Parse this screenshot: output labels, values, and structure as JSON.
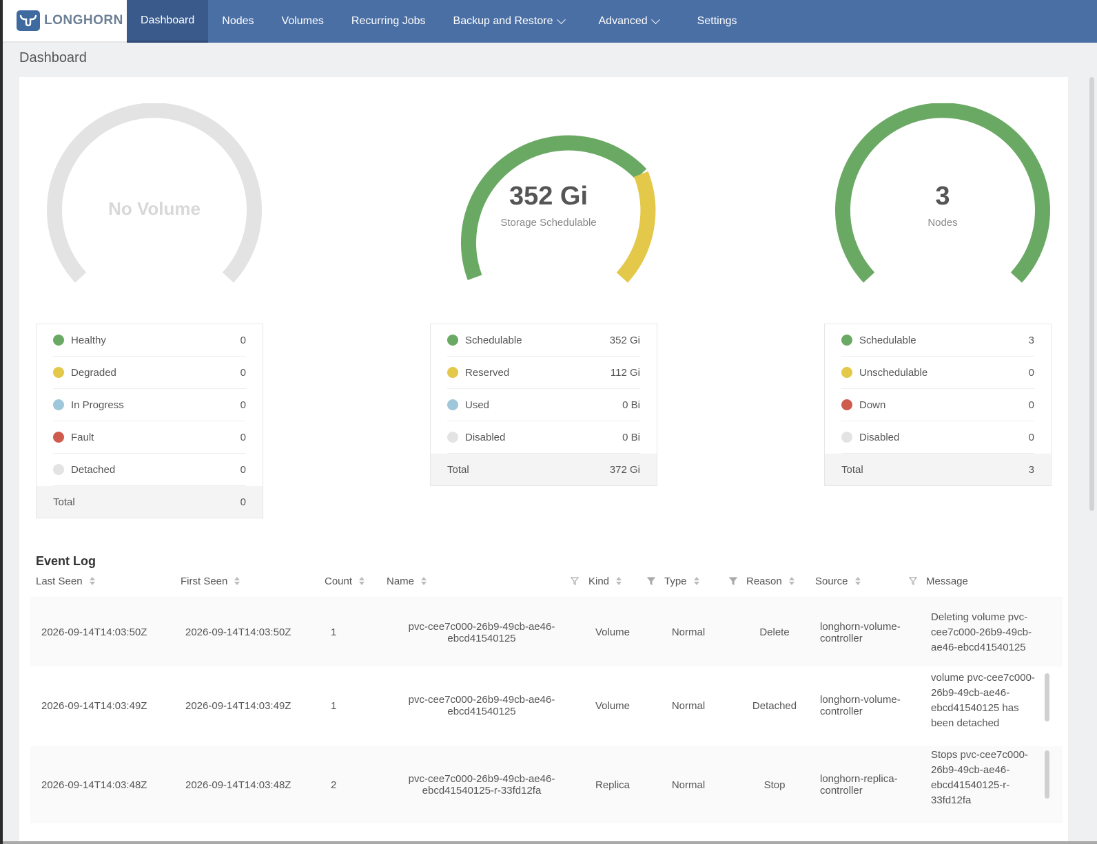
{
  "nav": {
    "logo_text": "LONGHORN",
    "items": [
      {
        "label": "Dashboard",
        "active": true
      },
      {
        "label": "Nodes"
      },
      {
        "label": "Volumes"
      },
      {
        "label": "Recurring Jobs"
      },
      {
        "label": "Backup and Restore",
        "dropdown": true
      },
      {
        "label": "Advanced",
        "dropdown": true
      },
      {
        "label": "Settings"
      }
    ]
  },
  "page_title": "Dashboard",
  "colors": {
    "nav_bg": "#4a6fa5",
    "green": "#6aa964",
    "yellow": "#e3c84a",
    "blue": "#9ec7d9",
    "red": "#cf5b4f",
    "grey": "#e3e3e3"
  },
  "volumes_gauge": {
    "empty_label": "No Volume",
    "legend": [
      {
        "label": "Healthy",
        "value": "0",
        "color": "#6aa964"
      },
      {
        "label": "Degraded",
        "value": "0",
        "color": "#e3c84a"
      },
      {
        "label": "In Progress",
        "value": "0",
        "color": "#9ec7d9"
      },
      {
        "label": "Fault",
        "value": "0",
        "color": "#cf5b4f"
      },
      {
        "label": "Detached",
        "value": "0",
        "color": "#e3e3e3"
      }
    ],
    "total_label": "Total",
    "total_value": "0"
  },
  "storage_gauge": {
    "value": "352 Gi",
    "subtitle": "Storage Schedulable",
    "legend": [
      {
        "label": "Schedulable",
        "value": "352 Gi",
        "color": "#6aa964"
      },
      {
        "label": "Reserved",
        "value": "112 Gi",
        "color": "#e3c84a"
      },
      {
        "label": "Used",
        "value": "0 Bi",
        "color": "#9ec7d9"
      },
      {
        "label": "Disabled",
        "value": "0 Bi",
        "color": "#e3e3e3"
      }
    ],
    "total_label": "Total",
    "total_value": "372 Gi"
  },
  "nodes_gauge": {
    "value": "3",
    "subtitle": "Nodes",
    "legend": [
      {
        "label": "Schedulable",
        "value": "3",
        "color": "#6aa964"
      },
      {
        "label": "Unschedulable",
        "value": "0",
        "color": "#e3c84a"
      },
      {
        "label": "Down",
        "value": "0",
        "color": "#cf5b4f"
      },
      {
        "label": "Disabled",
        "value": "0",
        "color": "#e3e3e3"
      }
    ],
    "total_label": "Total",
    "total_value": "3"
  },
  "event_log": {
    "title": "Event Log",
    "columns": [
      "Last Seen",
      "First Seen",
      "Count",
      "Name",
      "Kind",
      "Type",
      "Reason",
      "Source",
      "Message"
    ],
    "rows": [
      {
        "last_seen": "2026-09-14T14:03:50Z",
        "first_seen": "2026-09-14T14:03:50Z",
        "count": "1",
        "name_line1": "pvc-cee7c000-26b9-49cb-ae46-",
        "name_line2": "ebcd41540125",
        "kind": "Volume",
        "type": "Normal",
        "reason": "Delete",
        "source_line1": "longhorn-volume-",
        "source_line2": "controller",
        "message_lines": [
          "Deleting volume pvc-",
          "cee7c000-26b9-49cb-",
          "ae46-ebcd41540125"
        ]
      },
      {
        "last_seen": "2026-09-14T14:03:49Z",
        "first_seen": "2026-09-14T14:03:49Z",
        "count": "1",
        "name_line1": "pvc-cee7c000-26b9-49cb-ae46-",
        "name_line2": "ebcd41540125",
        "kind": "Volume",
        "type": "Normal",
        "reason": "Detached",
        "source_line1": "longhorn-volume-",
        "source_line2": "controller",
        "message_lines": [
          "volume pvc-cee7c000-",
          "26b9-49cb-ae46-",
          "ebcd41540125 has",
          "been detached"
        ]
      },
      {
        "last_seen": "2026-09-14T14:03:48Z",
        "first_seen": "2026-09-14T14:03:48Z",
        "count": "2",
        "name_line1": "pvc-cee7c000-26b9-49cb-ae46-",
        "name_line2": "ebcd41540125-r-33fd12fa",
        "kind": "Replica",
        "type": "Normal",
        "reason": "Stop",
        "source_line1": "longhorn-replica-",
        "source_line2": "controller",
        "message_lines": [
          "Stops pvc-cee7c000-",
          "26b9-49cb-ae46-",
          "ebcd41540125-r-",
          "33fd12fa"
        ]
      }
    ]
  }
}
